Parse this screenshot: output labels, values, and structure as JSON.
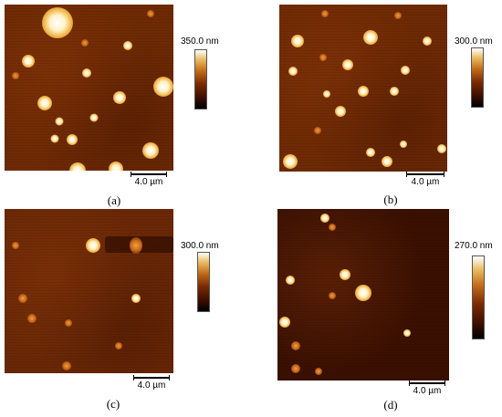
{
  "panels": [
    {
      "scale_bar": "4.0 µm",
      "colorbar_max": "350.0 nm",
      "caption": "(a)"
    },
    {
      "scale_bar": "4.0 µm",
      "colorbar_max": "300.0 nm",
      "caption": "(b)"
    },
    {
      "scale_bar": "4.0 µm",
      "colorbar_max": "300.0 nm",
      "caption": "(c)"
    },
    {
      "scale_bar": "4.0 µm",
      "colorbar_max": "270.0 nm",
      "caption": "(d)"
    }
  ],
  "colors": {
    "substrate": "#6e2a04",
    "feature_high": "#ffffff",
    "feature_mid": "#f0b040",
    "colorbar_low": "#000000"
  }
}
